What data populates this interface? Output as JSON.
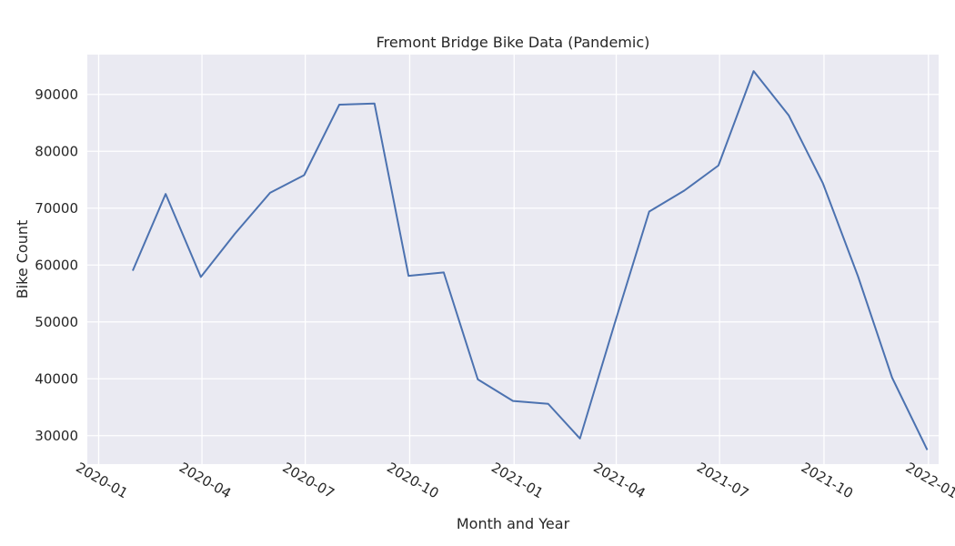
{
  "chart_data": {
    "type": "line",
    "title": "Fremont Bridge Bike Data (Pandemic)",
    "xlabel": "Month and Year",
    "ylabel": "Bike Count",
    "x_tick_labels": [
      "2020-01",
      "2020-04",
      "2020-07",
      "2020-10",
      "2021-01",
      "2021-04",
      "2021-07",
      "2021-10",
      "2022-01"
    ],
    "y_tick_labels": [
      "30000",
      "40000",
      "50000",
      "60000",
      "70000",
      "80000",
      "90000"
    ],
    "ylim": [
      25000,
      97000
    ],
    "xlim": [
      "2019-12-22",
      "2022-01-10"
    ],
    "grid": true,
    "background_color": "#eaeaf2",
    "grid_color": "#ffffff",
    "series": [
      {
        "color": "#4c72b0",
        "points": [
          {
            "x": "2020-01-31",
            "y": 59000
          },
          {
            "x": "2020-02-29",
            "y": 72500
          },
          {
            "x": "2020-03-31",
            "y": 57900
          },
          {
            "x": "2020-04-30",
            "y": 65500
          },
          {
            "x": "2020-05-31",
            "y": 72700
          },
          {
            "x": "2020-06-30",
            "y": 75800
          },
          {
            "x": "2020-07-31",
            "y": 88200
          },
          {
            "x": "2020-08-31",
            "y": 88400
          },
          {
            "x": "2020-09-30",
            "y": 58100
          },
          {
            "x": "2020-10-31",
            "y": 58700
          },
          {
            "x": "2020-11-30",
            "y": 39900
          },
          {
            "x": "2020-12-31",
            "y": 36100
          },
          {
            "x": "2021-01-31",
            "y": 35600
          },
          {
            "x": "2021-02-28",
            "y": 29500
          },
          {
            "x": "2021-03-31",
            "y": 50000
          },
          {
            "x": "2021-04-30",
            "y": 69400
          },
          {
            "x": "2021-05-31",
            "y": 73100
          },
          {
            "x": "2021-06-30",
            "y": 77500
          },
          {
            "x": "2021-07-31",
            "y": 94100
          },
          {
            "x": "2021-08-31",
            "y": 86300
          },
          {
            "x": "2021-09-30",
            "y": 74400
          },
          {
            "x": "2021-10-31",
            "y": 58000
          },
          {
            "x": "2021-11-30",
            "y": 40200
          },
          {
            "x": "2021-12-31",
            "y": 27500
          }
        ]
      }
    ]
  }
}
